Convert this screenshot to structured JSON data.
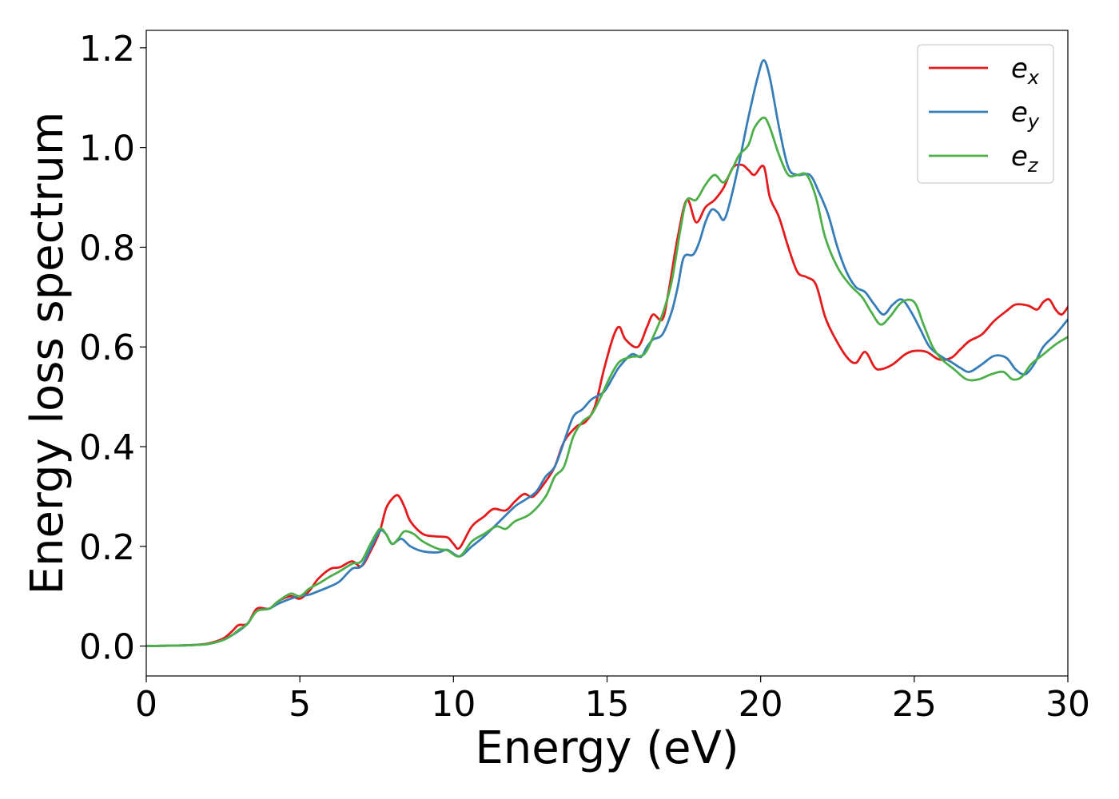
{
  "chart_data": {
    "type": "line",
    "xlabel": "Energy (eV)",
    "ylabel": "Energy loss spectrum",
    "xlim": [
      0,
      30
    ],
    "ylim": [
      -0.06,
      1.235
    ],
    "xticks": [
      0,
      5,
      10,
      15,
      20,
      25,
      30
    ],
    "yticks": [
      0.0,
      0.2,
      0.4,
      0.6,
      0.8,
      1.0,
      1.2
    ],
    "xtick_labels": [
      "0",
      "5",
      "10",
      "15",
      "20",
      "25",
      "30"
    ],
    "ytick_labels": [
      "0.0",
      "0.2",
      "0.4",
      "0.6",
      "0.8",
      "1.0",
      "1.2"
    ],
    "grid": false,
    "legend_position": "top-right",
    "series": [
      {
        "name": "e",
        "subscript": "x",
        "color": "#e41a1c",
        "points": [
          [
            0,
            0
          ],
          [
            1,
            0.001
          ],
          [
            1.5,
            0.002
          ],
          [
            2,
            0.005
          ],
          [
            2.5,
            0.015
          ],
          [
            2.8,
            0.03
          ],
          [
            3,
            0.042
          ],
          [
            3.3,
            0.045
          ],
          [
            3.6,
            0.075
          ],
          [
            4,
            0.075
          ],
          [
            4.3,
            0.09
          ],
          [
            4.7,
            0.1
          ],
          [
            5,
            0.095
          ],
          [
            5.3,
            0.11
          ],
          [
            5.6,
            0.135
          ],
          [
            6,
            0.155
          ],
          [
            6.3,
            0.158
          ],
          [
            6.7,
            0.17
          ],
          [
            7,
            0.16
          ],
          [
            7.3,
            0.19
          ],
          [
            7.6,
            0.23
          ],
          [
            7.8,
            0.275
          ],
          [
            8,
            0.295
          ],
          [
            8.2,
            0.302
          ],
          [
            8.4,
            0.28
          ],
          [
            8.6,
            0.25
          ],
          [
            9,
            0.225
          ],
          [
            9.4,
            0.22
          ],
          [
            9.8,
            0.218
          ],
          [
            10,
            0.205
          ],
          [
            10.2,
            0.197
          ],
          [
            10.6,
            0.24
          ],
          [
            11,
            0.26
          ],
          [
            11.3,
            0.275
          ],
          [
            11.7,
            0.272
          ],
          [
            12,
            0.29
          ],
          [
            12.3,
            0.305
          ],
          [
            12.6,
            0.3
          ],
          [
            13,
            0.33
          ],
          [
            13.3,
            0.36
          ],
          [
            13.6,
            0.41
          ],
          [
            14,
            0.44
          ],
          [
            14.3,
            0.45
          ],
          [
            14.6,
            0.48
          ],
          [
            14.9,
            0.555
          ],
          [
            15.2,
            0.62
          ],
          [
            15.4,
            0.64
          ],
          [
            15.6,
            0.615
          ],
          [
            16,
            0.6
          ],
          [
            16.3,
            0.64
          ],
          [
            16.5,
            0.665
          ],
          [
            16.8,
            0.655
          ],
          [
            17,
            0.71
          ],
          [
            17.3,
            0.82
          ],
          [
            17.6,
            0.895
          ],
          [
            17.9,
            0.85
          ],
          [
            18.2,
            0.88
          ],
          [
            18.5,
            0.895
          ],
          [
            18.8,
            0.92
          ],
          [
            19.1,
            0.96
          ],
          [
            19.4,
            0.965
          ],
          [
            19.6,
            0.955
          ],
          [
            19.8,
            0.945
          ],
          [
            20.1,
            0.962
          ],
          [
            20.3,
            0.9
          ],
          [
            20.6,
            0.86
          ],
          [
            20.9,
            0.8
          ],
          [
            21.2,
            0.75
          ],
          [
            21.5,
            0.74
          ],
          [
            21.8,
            0.725
          ],
          [
            22.1,
            0.66
          ],
          [
            22.4,
            0.62
          ],
          [
            22.8,
            0.58
          ],
          [
            23.1,
            0.568
          ],
          [
            23.4,
            0.59
          ],
          [
            23.7,
            0.56
          ],
          [
            23.9,
            0.555
          ],
          [
            24.3,
            0.565
          ],
          [
            24.7,
            0.585
          ],
          [
            25,
            0.592
          ],
          [
            25.4,
            0.59
          ],
          [
            25.8,
            0.575
          ],
          [
            26.2,
            0.578
          ],
          [
            26.5,
            0.595
          ],
          [
            26.8,
            0.612
          ],
          [
            27.2,
            0.625
          ],
          [
            27.6,
            0.652
          ],
          [
            28,
            0.672
          ],
          [
            28.3,
            0.685
          ],
          [
            28.7,
            0.683
          ],
          [
            29,
            0.675
          ],
          [
            29.2,
            0.69
          ],
          [
            29.4,
            0.695
          ],
          [
            29.6,
            0.675
          ],
          [
            29.8,
            0.665
          ],
          [
            30,
            0.68
          ]
        ]
      },
      {
        "name": "e",
        "subscript": "y",
        "color": "#377eb8",
        "points": [
          [
            0,
            0
          ],
          [
            1,
            0.001
          ],
          [
            1.5,
            0.002
          ],
          [
            2,
            0.004
          ],
          [
            2.5,
            0.012
          ],
          [
            2.8,
            0.022
          ],
          [
            3,
            0.03
          ],
          [
            3.3,
            0.045
          ],
          [
            3.6,
            0.07
          ],
          [
            4,
            0.075
          ],
          [
            4.3,
            0.085
          ],
          [
            4.7,
            0.095
          ],
          [
            5,
            0.1
          ],
          [
            5.3,
            0.103
          ],
          [
            5.6,
            0.11
          ],
          [
            6,
            0.12
          ],
          [
            6.3,
            0.13
          ],
          [
            6.7,
            0.155
          ],
          [
            7,
            0.16
          ],
          [
            7.3,
            0.195
          ],
          [
            7.6,
            0.23
          ],
          [
            7.8,
            0.225
          ],
          [
            8,
            0.205
          ],
          [
            8.3,
            0.215
          ],
          [
            8.6,
            0.2
          ],
          [
            9,
            0.19
          ],
          [
            9.5,
            0.188
          ],
          [
            9.8,
            0.193
          ],
          [
            10.2,
            0.18
          ],
          [
            10.6,
            0.2
          ],
          [
            11,
            0.22
          ],
          [
            11.5,
            0.25
          ],
          [
            12,
            0.28
          ],
          [
            12.3,
            0.292
          ],
          [
            12.7,
            0.31
          ],
          [
            13,
            0.34
          ],
          [
            13.3,
            0.36
          ],
          [
            13.6,
            0.41
          ],
          [
            13.9,
            0.46
          ],
          [
            14.2,
            0.475
          ],
          [
            14.5,
            0.495
          ],
          [
            14.9,
            0.51
          ],
          [
            15.2,
            0.54
          ],
          [
            15.4,
            0.56
          ],
          [
            15.8,
            0.585
          ],
          [
            16.1,
            0.58
          ],
          [
            16.3,
            0.6
          ],
          [
            16.5,
            0.615
          ],
          [
            16.8,
            0.625
          ],
          [
            17.1,
            0.67
          ],
          [
            17.3,
            0.72
          ],
          [
            17.5,
            0.78
          ],
          [
            17.8,
            0.785
          ],
          [
            18,
            0.81
          ],
          [
            18.2,
            0.85
          ],
          [
            18.4,
            0.875
          ],
          [
            18.6,
            0.87
          ],
          [
            18.8,
            0.855
          ],
          [
            19,
            0.89
          ],
          [
            19.3,
            0.97
          ],
          [
            19.6,
            1.06
          ],
          [
            19.9,
            1.14
          ],
          [
            20.1,
            1.175
          ],
          [
            20.3,
            1.14
          ],
          [
            20.6,
            1.04
          ],
          [
            20.9,
            0.96
          ],
          [
            21.2,
            0.945
          ],
          [
            21.6,
            0.945
          ],
          [
            21.9,
            0.91
          ],
          [
            22.2,
            0.865
          ],
          [
            22.5,
            0.8
          ],
          [
            22.8,
            0.75
          ],
          [
            23.1,
            0.72
          ],
          [
            23.4,
            0.71
          ],
          [
            23.7,
            0.685
          ],
          [
            24,
            0.665
          ],
          [
            24.3,
            0.685
          ],
          [
            24.6,
            0.695
          ],
          [
            24.9,
            0.67
          ],
          [
            25.2,
            0.635
          ],
          [
            25.5,
            0.6
          ],
          [
            25.9,
            0.58
          ],
          [
            26.2,
            0.57
          ],
          [
            26.5,
            0.558
          ],
          [
            26.8,
            0.55
          ],
          [
            27.2,
            0.565
          ],
          [
            27.6,
            0.582
          ],
          [
            28,
            0.578
          ],
          [
            28.3,
            0.555
          ],
          [
            28.6,
            0.545
          ],
          [
            28.9,
            0.565
          ],
          [
            29.2,
            0.6
          ],
          [
            29.6,
            0.625
          ],
          [
            30,
            0.655
          ]
        ]
      },
      {
        "name": "e",
        "subscript": "z",
        "color": "#4daf4a",
        "points": [
          [
            0,
            0
          ],
          [
            1,
            0.001
          ],
          [
            1.5,
            0.002
          ],
          [
            2,
            0.004
          ],
          [
            2.5,
            0.012
          ],
          [
            2.8,
            0.022
          ],
          [
            3,
            0.032
          ],
          [
            3.3,
            0.045
          ],
          [
            3.6,
            0.07
          ],
          [
            4,
            0.075
          ],
          [
            4.3,
            0.09
          ],
          [
            4.7,
            0.105
          ],
          [
            5,
            0.1
          ],
          [
            5.3,
            0.115
          ],
          [
            5.6,
            0.125
          ],
          [
            6,
            0.14
          ],
          [
            6.3,
            0.15
          ],
          [
            6.7,
            0.165
          ],
          [
            7,
            0.17
          ],
          [
            7.3,
            0.205
          ],
          [
            7.6,
            0.235
          ],
          [
            7.8,
            0.225
          ],
          [
            8,
            0.205
          ],
          [
            8.2,
            0.215
          ],
          [
            8.4,
            0.23
          ],
          [
            8.7,
            0.225
          ],
          [
            9,
            0.21
          ],
          [
            9.5,
            0.195
          ],
          [
            9.8,
            0.192
          ],
          [
            10.2,
            0.18
          ],
          [
            10.6,
            0.21
          ],
          [
            11,
            0.225
          ],
          [
            11.4,
            0.24
          ],
          [
            11.7,
            0.235
          ],
          [
            12,
            0.25
          ],
          [
            12.5,
            0.265
          ],
          [
            13,
            0.3
          ],
          [
            13.3,
            0.34
          ],
          [
            13.6,
            0.36
          ],
          [
            13.9,
            0.42
          ],
          [
            14.2,
            0.45
          ],
          [
            14.5,
            0.465
          ],
          [
            14.8,
            0.5
          ],
          [
            15.1,
            0.54
          ],
          [
            15.4,
            0.57
          ],
          [
            15.8,
            0.58
          ],
          [
            16.2,
            0.585
          ],
          [
            16.5,
            0.62
          ],
          [
            16.8,
            0.665
          ],
          [
            17.1,
            0.73
          ],
          [
            17.4,
            0.84
          ],
          [
            17.6,
            0.895
          ],
          [
            17.9,
            0.895
          ],
          [
            18.2,
            0.925
          ],
          [
            18.5,
            0.945
          ],
          [
            18.8,
            0.93
          ],
          [
            19.1,
            0.96
          ],
          [
            19.3,
            0.985
          ],
          [
            19.6,
            1.005
          ],
          [
            19.8,
            1.04
          ],
          [
            20.1,
            1.06
          ],
          [
            20.3,
            1.04
          ],
          [
            20.6,
            0.985
          ],
          [
            20.9,
            0.945
          ],
          [
            21.2,
            0.945
          ],
          [
            21.5,
            0.945
          ],
          [
            21.8,
            0.9
          ],
          [
            22.1,
            0.82
          ],
          [
            22.5,
            0.76
          ],
          [
            22.9,
            0.725
          ],
          [
            23.3,
            0.7
          ],
          [
            23.6,
            0.67
          ],
          [
            23.9,
            0.645
          ],
          [
            24.2,
            0.66
          ],
          [
            24.6,
            0.69
          ],
          [
            25,
            0.69
          ],
          [
            25.3,
            0.645
          ],
          [
            25.6,
            0.6
          ],
          [
            25.9,
            0.575
          ],
          [
            26.3,
            0.555
          ],
          [
            26.7,
            0.535
          ],
          [
            27.1,
            0.535
          ],
          [
            27.5,
            0.545
          ],
          [
            27.9,
            0.55
          ],
          [
            28.2,
            0.535
          ],
          [
            28.5,
            0.54
          ],
          [
            28.8,
            0.565
          ],
          [
            29.2,
            0.585
          ],
          [
            29.6,
            0.605
          ],
          [
            30,
            0.62
          ]
        ]
      }
    ]
  }
}
